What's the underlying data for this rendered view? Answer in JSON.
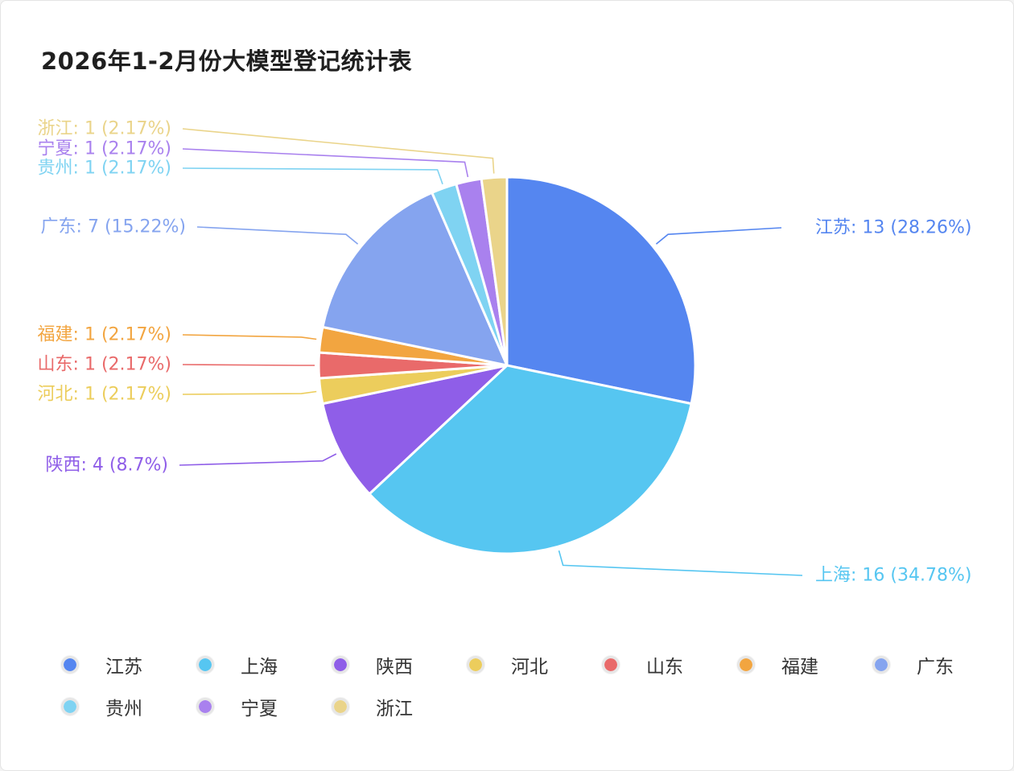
{
  "title": "2026年1-2月份大模型登记统计表",
  "chart_data": {
    "type": "pie",
    "title": "2026年1-2月份大模型登记统计表",
    "start": "12 o'clock, clockwise",
    "legend_position": "bottom",
    "slices": [
      {
        "name": "江苏",
        "value": 13,
        "percent": "28.26%",
        "label": "江苏: 13 (28.26%)",
        "color": "#5586f0"
      },
      {
        "name": "上海",
        "value": 16,
        "percent": "34.78%",
        "label": "上海: 16 (34.78%)",
        "color": "#56c6f1"
      },
      {
        "name": "陕西",
        "value": 4,
        "percent": "8.7%",
        "label": "陕西: 4 (8.7%)",
        "color": "#8f5ee8"
      },
      {
        "name": "河北",
        "value": 1,
        "percent": "2.17%",
        "label": "河北: 1 (2.17%)",
        "color": "#eccd5c"
      },
      {
        "name": "山东",
        "value": 1,
        "percent": "2.17%",
        "label": "山东: 1 (2.17%)",
        "color": "#e96a6a"
      },
      {
        "name": "福建",
        "value": 1,
        "percent": "2.17%",
        "label": "福建: 1 (2.17%)",
        "color": "#f2a540"
      },
      {
        "name": "广东",
        "value": 7,
        "percent": "15.22%",
        "label": "广东: 7 (15.22%)",
        "color": "#85a4ef"
      },
      {
        "name": "贵州",
        "value": 1,
        "percent": "2.17%",
        "label": "贵州: 1 (2.17%)",
        "color": "#7fd3f2"
      },
      {
        "name": "宁夏",
        "value": 1,
        "percent": "2.17%",
        "label": "宁夏: 1 (2.17%)",
        "color": "#a981ee"
      },
      {
        "name": "浙江",
        "value": 1,
        "percent": "2.17%",
        "label": "浙江: 1 (2.17%)",
        "color": "#ead48a"
      }
    ]
  }
}
